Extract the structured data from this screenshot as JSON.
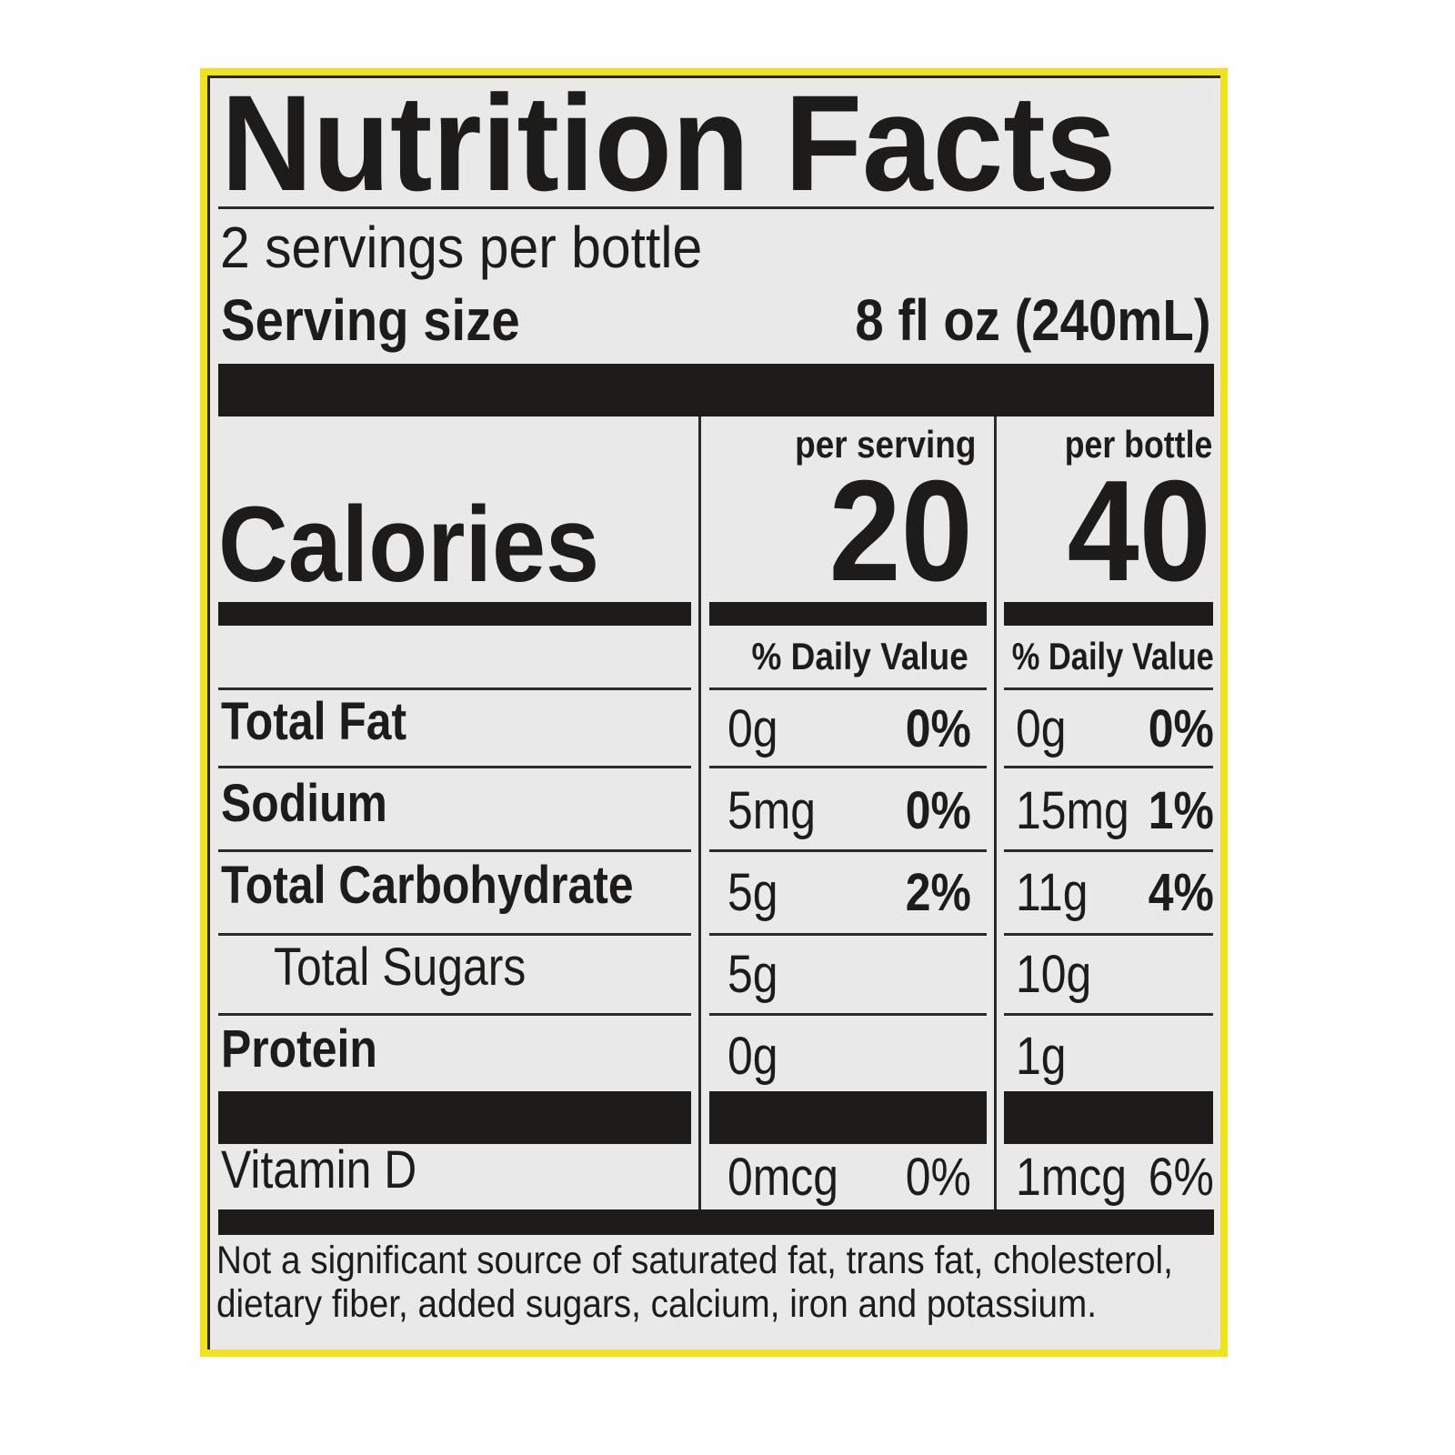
{
  "title": "Nutrition Facts",
  "servings_per_container": "2 servings per bottle",
  "serving_size_label": "Serving size",
  "serving_size_value": "8 fl oz (240mL)",
  "calories_label": "Calories",
  "columns": [
    {
      "header": "per serving",
      "calories": "20",
      "dv_header": "% Daily Value"
    },
    {
      "header": "per bottle",
      "calories": "40",
      "dv_header": "% Daily Value"
    }
  ],
  "rows": [
    {
      "name": "Total Fat",
      "serving_amount": "0g",
      "serving_dv": "0%",
      "bottle_amount": "0g",
      "bottle_dv": "0%"
    },
    {
      "name": "Sodium",
      "serving_amount": "5mg",
      "serving_dv": "0%",
      "bottle_amount": "15mg",
      "bottle_dv": "1%"
    },
    {
      "name": "Total Carbohydrate",
      "serving_amount": "5g",
      "serving_dv": "2%",
      "bottle_amount": "11g",
      "bottle_dv": "4%"
    },
    {
      "name": "Total Sugars",
      "serving_amount": "5g",
      "serving_dv": "",
      "bottle_amount": "10g",
      "bottle_dv": ""
    },
    {
      "name": "Protein",
      "serving_amount": "0g",
      "serving_dv": "",
      "bottle_amount": "1g",
      "bottle_dv": ""
    },
    {
      "name": "Vitamin D",
      "serving_amount": "0mcg",
      "serving_dv": "0%",
      "bottle_amount": "1mcg",
      "bottle_dv": "6%"
    }
  ],
  "footnote_line1": "Not a significant source of saturated fat, trans fat, cholesterol,",
  "footnote_line2": "dietary fiber, added sugars, calcium, iron and potassium.",
  "colors": {
    "border": "#f2e21e",
    "background": "#e9e9ea",
    "ink": "#1d1c1a"
  }
}
